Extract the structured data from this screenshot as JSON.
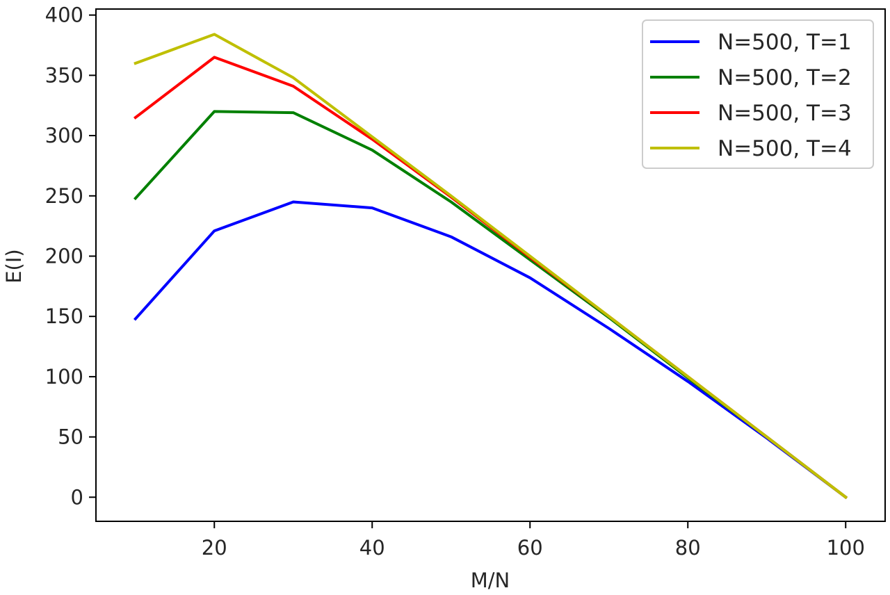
{
  "chart_data": {
    "type": "line",
    "title": "",
    "xlabel": "M/N",
    "ylabel": "E(I)",
    "x": [
      10,
      20,
      30,
      40,
      50,
      60,
      70,
      80,
      90,
      100
    ],
    "xlim": [
      5,
      105
    ],
    "ylim": [
      -20,
      405
    ],
    "xticks": [
      "20",
      "40",
      "60",
      "80",
      "100"
    ],
    "yticks": [
      "0",
      "50",
      "100",
      "150",
      "200",
      "250",
      "300",
      "350",
      "400"
    ],
    "grid": false,
    "legend_position": "top-right",
    "series": [
      {
        "name": "N=500, T=1",
        "color": "#0000ff",
        "values": [
          148,
          221,
          245,
          240,
          216,
          182,
          140,
          96,
          49,
          0
        ]
      },
      {
        "name": "N=500, T=2",
        "color": "#008000",
        "values": [
          248,
          320,
          319,
          288,
          245,
          197,
          149,
          99,
          50,
          0
        ]
      },
      {
        "name": "N=500, T=3",
        "color": "#ff0000",
        "values": [
          315,
          365,
          341,
          297,
          249,
          199,
          150,
          100,
          50,
          0
        ]
      },
      {
        "name": "N=500, T=4",
        "color": "#bfbf00",
        "values": [
          360,
          384,
          348,
          299,
          250,
          200,
          150,
          100,
          50,
          0
        ]
      }
    ]
  }
}
